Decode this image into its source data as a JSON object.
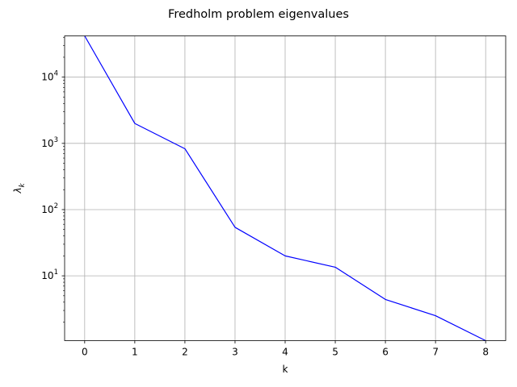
{
  "chart_data": {
    "type": "line",
    "title": "Fredholm problem eigenvalues",
    "xlabel": "k",
    "ylabel": "λ_k",
    "x": [
      0,
      1,
      2,
      3,
      4,
      5,
      6,
      7,
      8
    ],
    "series": [
      {
        "values": [
          42000,
          2000,
          830,
          54,
          20,
          13.5,
          4.4,
          2.5,
          1.05
        ],
        "color": "#0000ff"
      }
    ],
    "xlim": [
      -0.4,
      8.4
    ],
    "ylim": [
      1.05,
      42000
    ],
    "yscale": "log",
    "x_ticks": [
      "0",
      "1",
      "2",
      "3",
      "4",
      "5",
      "6",
      "7",
      "8"
    ],
    "y_ticks": [
      {
        "base": "10",
        "exp": "1",
        "value": 10
      },
      {
        "base": "10",
        "exp": "2",
        "value": 100
      },
      {
        "base": "10",
        "exp": "3",
        "value": 1000
      },
      {
        "base": "10",
        "exp": "4",
        "value": 10000
      }
    ],
    "grid": true,
    "grid_color": "#b0b0b0"
  }
}
